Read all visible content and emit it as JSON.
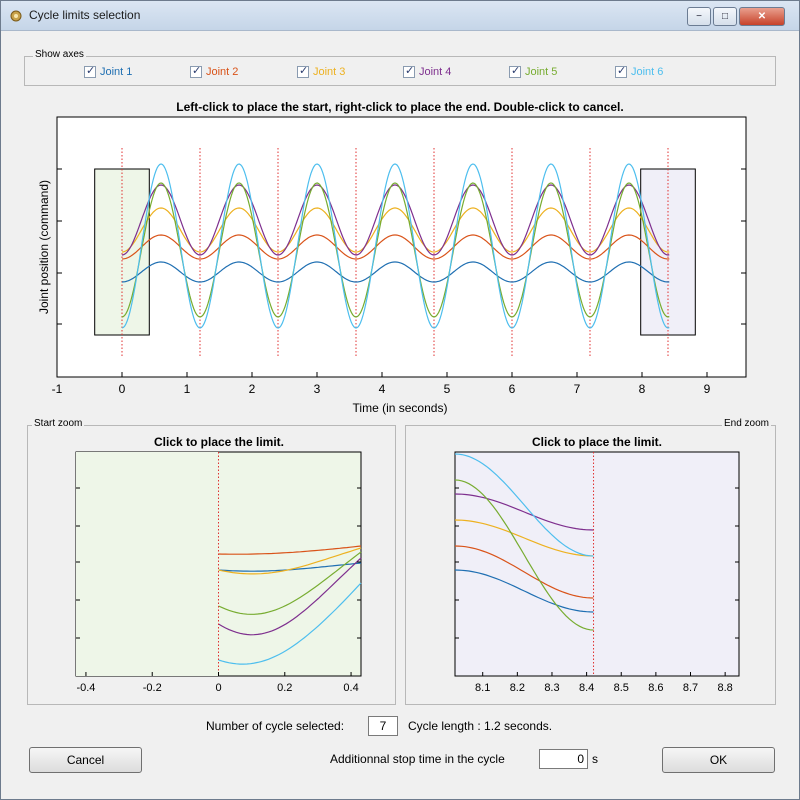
{
  "window": {
    "title": "Cycle limits selection",
    "minimize": "−",
    "maximize": "□",
    "close": "✕"
  },
  "show_axes": {
    "label": "Show axes",
    "joints": [
      {
        "label": "Joint 1",
        "color": "#1f6fb2",
        "checked": true
      },
      {
        "label": "Joint 2",
        "color": "#d95319",
        "checked": true
      },
      {
        "label": "Joint 3",
        "color": "#edb120",
        "checked": true
      },
      {
        "label": "Joint 4",
        "color": "#7e2f8e",
        "checked": true
      },
      {
        "label": "Joint 5",
        "color": "#77ac30",
        "checked": true
      },
      {
        "label": "Joint 6",
        "color": "#4dbeee",
        "checked": true
      }
    ]
  },
  "main_plot": {
    "title": "Left-click to place the start, right-click to place the end. Double-click to cancel.",
    "xlabel": "Time (in seconds)",
    "ylabel": "Joint position (command)",
    "xticks": [
      "-1",
      "0",
      "1",
      "2",
      "3",
      "4",
      "5",
      "6",
      "7",
      "8",
      "9"
    ]
  },
  "start_zoom": {
    "panel_label": "Start zoom",
    "title": "Click to place the limit.",
    "xticks": [
      "-0.4",
      "-0.2",
      "0",
      "0.2",
      "0.4"
    ]
  },
  "end_zoom": {
    "panel_label": "End zoom",
    "title": "Click to place the limit.",
    "xticks": [
      "8.1",
      "8.2",
      "8.3",
      "8.4",
      "8.5",
      "8.6",
      "8.7",
      "8.8"
    ]
  },
  "footer": {
    "cycles_label": "Number of cycle selected:",
    "cycles_value": "7",
    "cycle_length": "Cycle length : 1.2 seconds.",
    "stop_label": "Additionnal stop time in the cycle",
    "stop_value": "0",
    "stop_unit": "s",
    "cancel": "Cancel",
    "ok": "OK"
  },
  "chart_data": [
    {
      "type": "line",
      "title": "Left-click to place the start, right-click to place the end. Double-click to cancel.",
      "xlabel": "Time (in seconds)",
      "ylabel": "Joint position (command)",
      "xlim": [
        -1,
        9.6
      ],
      "cycle_markers_x": [
        0,
        1.2,
        2.4,
        3.6,
        4.8,
        6.0,
        7.2,
        8.4
      ],
      "start_region": [
        -0.42,
        0.42
      ],
      "end_region": [
        7.98,
        8.82
      ],
      "series": [
        {
          "name": "Joint 1",
          "color": "#1f6fb2"
        },
        {
          "name": "Joint 2",
          "color": "#d95319"
        },
        {
          "name": "Joint 3",
          "color": "#edb120"
        },
        {
          "name": "Joint 4",
          "color": "#7e2f8e"
        },
        {
          "name": "Joint 5",
          "color": "#77ac30"
        },
        {
          "name": "Joint 6",
          "color": "#4dbeee"
        }
      ]
    },
    {
      "type": "line",
      "title": "Click to place the limit.",
      "xlim": [
        -0.43,
        0.43
      ],
      "limit_x": 0
    },
    {
      "type": "line",
      "title": "Click to place the limit.",
      "xlim": [
        8.02,
        8.84
      ],
      "limit_x": 8.42
    }
  ]
}
